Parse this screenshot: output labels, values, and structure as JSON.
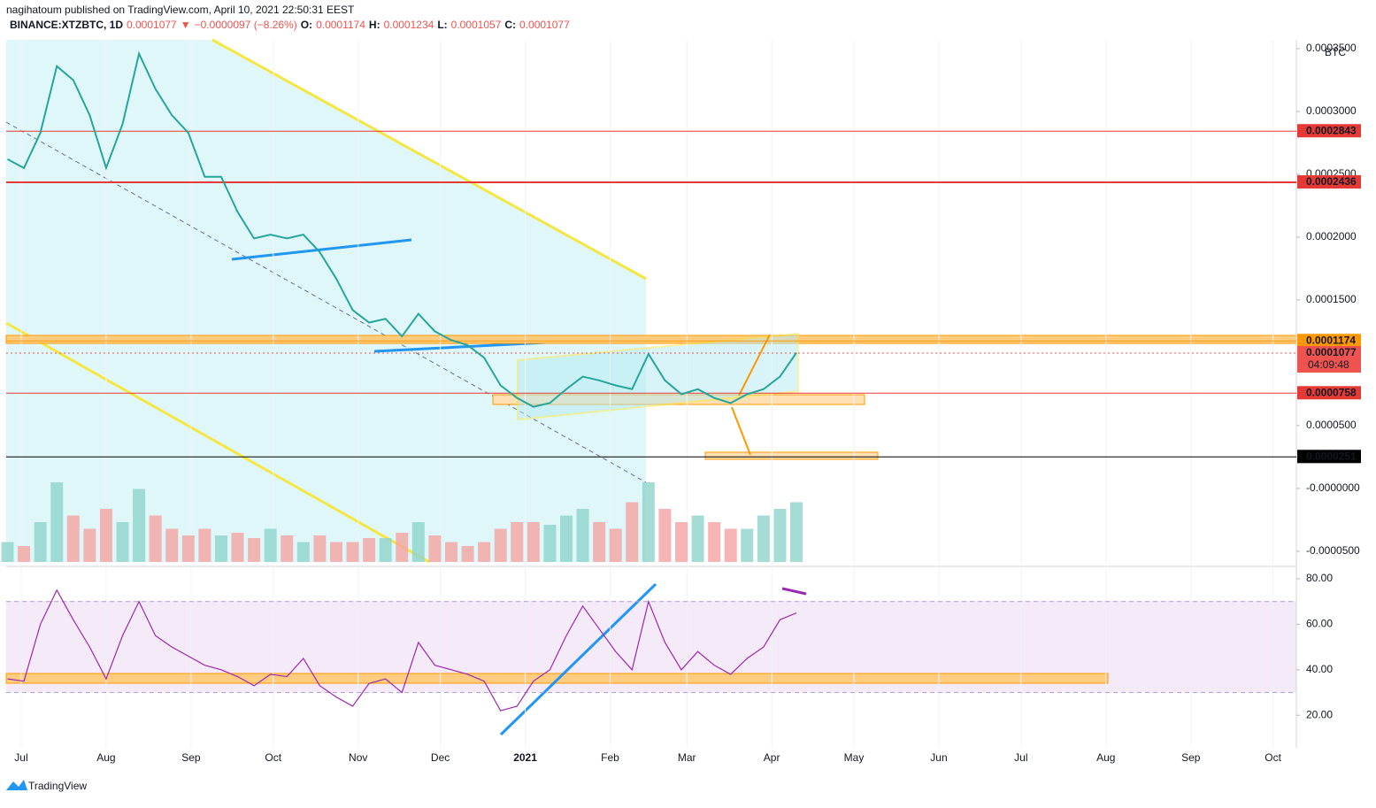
{
  "chart_data": {
    "type": "line",
    "header": {
      "line1": "nagihatoum published on TradingView.com, April 10, 2021 22:50:31 EEST",
      "symbol": "BINANCE:XTZBTC, 1D",
      "last": "0.0001077",
      "arrow": "▼",
      "change": "−0.0000097 (−8.26%)",
      "o_label": "O:",
      "o": "0.0001174",
      "h_label": "H:",
      "h": "0.0001234",
      "l_label": "L:",
      "l": "0.0001057",
      "c_label": "C:",
      "c": "0.0001077"
    },
    "currency": "BTC",
    "countdown": "04:09:48",
    "brand": "TradingView",
    "x": [
      0,
      6,
      12,
      18,
      24,
      30,
      36,
      42,
      48,
      54,
      60,
      66,
      72,
      78,
      84,
      90,
      96,
      102,
      108,
      114,
      120,
      126,
      132,
      138,
      144,
      150,
      156,
      162,
      168,
      174,
      180,
      186,
      192,
      198,
      204,
      210,
      216,
      222,
      228,
      234,
      240,
      246,
      252,
      258,
      264,
      270,
      276,
      282,
      288
    ],
    "xlim": [
      0,
      471
    ],
    "xticks": [
      {
        "value": 5,
        "label": "Jul"
      },
      {
        "value": 36,
        "label": "Aug"
      },
      {
        "value": 67,
        "label": "Sep"
      },
      {
        "value": 97,
        "label": "Oct"
      },
      {
        "value": 128,
        "label": "Nov"
      },
      {
        "value": 158,
        "label": "Dec"
      },
      {
        "value": 189,
        "label": "2021"
      },
      {
        "value": 220,
        "label": "Feb"
      },
      {
        "value": 248,
        "label": "Mar"
      },
      {
        "value": 279,
        "label": "Apr"
      },
      {
        "value": 309,
        "label": "May"
      },
      {
        "value": 340,
        "label": "Jun"
      },
      {
        "value": 370,
        "label": "Jul"
      },
      {
        "value": 401,
        "label": "Aug"
      },
      {
        "value": 432,
        "label": "Sep"
      },
      {
        "value": 462,
        "label": "Oct"
      }
    ],
    "series": [
      {
        "name": "XTZBTC",
        "color": "#26a69a",
        "values": [
          0.000262,
          0.000255,
          0.000283,
          0.000336,
          0.000325,
          0.000297,
          0.000255,
          0.00029,
          0.000346,
          0.000318,
          0.000297,
          0.000283,
          0.000248,
          0.000248,
          0.00022,
          0.000199,
          0.000202,
          0.000199,
          0.000202,
          0.000188,
          0.000167,
          0.000142,
          0.000132,
          0.000135,
          0.000121,
          0.000139,
          0.000125,
          0.000118,
          0.000114,
          0.000104,
          8.2e-05,
          7.2e-05,
          6.5e-05,
          6.8e-05,
          7.9e-05,
          8.9e-05,
          8.6e-05,
          8.2e-05,
          7.9e-05,
          0.000107,
          8.6e-05,
          7.5e-05,
          7.9e-05,
          7.2e-05,
          6.8e-05,
          7.5e-05,
          7.9e-05,
          8.9e-05,
          0.000108
        ]
      }
    ],
    "ylim": [
      -5.85e-05,
      0.000357
    ],
    "yticks": [
      {
        "value": 0.00035,
        "label": "0.0003500"
      },
      {
        "value": 0.0003,
        "label": "0.0003000"
      },
      {
        "value": 0.00025,
        "label": "0.0002500"
      },
      {
        "value": 0.0002,
        "label": "0.0002000"
      },
      {
        "value": 0.00015,
        "label": "0.0001500"
      },
      {
        "value": 5e-05,
        "label": "0.0000500"
      },
      {
        "value": 0,
        "label": "-0.0000000"
      },
      {
        "value": -5e-05,
        "label": "-0.0000500"
      }
    ],
    "levels": [
      {
        "value": 0.0002843,
        "color": "#e53935"
      },
      {
        "value": 0.0002436,
        "color": "#e53935"
      },
      {
        "value": 0.0001174,
        "color": "#ff9800"
      },
      {
        "value": 0.0001077,
        "color": "#ef5350"
      },
      {
        "value": 7.58e-05,
        "color": "#e53935"
      },
      {
        "value": 2.51e-05,
        "color": "#000000"
      }
    ],
    "volume": {
      "up_color": "#8fd3cc",
      "down_color": "#f4a3a1",
      "ylim": [
        0,
        100
      ],
      "values": [
        15,
        12,
        30,
        60,
        35,
        25,
        40,
        30,
        55,
        35,
        25,
        20,
        25,
        20,
        22,
        18,
        25,
        20,
        15,
        20,
        15,
        15,
        18,
        18,
        22,
        30,
        20,
        15,
        12,
        15,
        25,
        30,
        30,
        28,
        35,
        40,
        30,
        25,
        45,
        60,
        40,
        30,
        35,
        30,
        25,
        25,
        35,
        40,
        45
      ]
    },
    "rsi": {
      "color": "#9c27b0",
      "ylim": [
        5.7,
        83.5
      ],
      "band": [
        30,
        70
      ],
      "yticks": [
        {
          "value": 80,
          "label": "80.00"
        },
        {
          "value": 60,
          "label": "60.00"
        },
        {
          "value": 40,
          "label": "40.00"
        },
        {
          "value": 20,
          "label": "20.00"
        }
      ],
      "values": [
        36,
        35,
        60,
        75,
        62,
        50,
        36,
        55,
        70,
        55,
        50,
        46,
        42,
        40,
        37,
        33,
        38,
        37,
        45,
        33,
        28,
        24,
        34,
        36,
        30,
        52,
        42,
        40,
        38,
        35,
        22,
        24,
        35,
        40,
        55,
        68,
        58,
        48,
        40,
        70,
        52,
        40,
        48,
        42,
        38,
        45,
        50,
        62,
        65
      ]
    }
  }
}
